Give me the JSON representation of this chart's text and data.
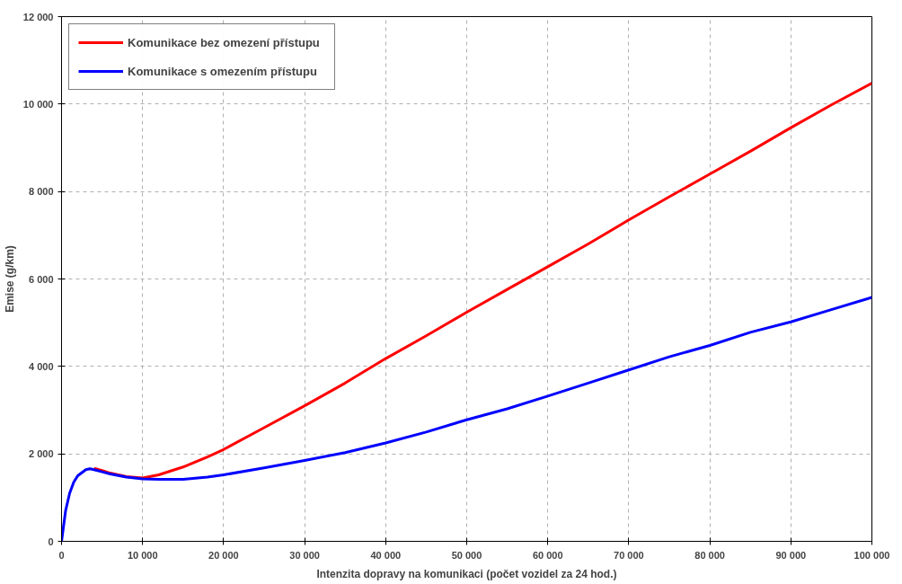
{
  "chart_data": {
    "type": "line",
    "xlabel": "Intenzita dopravy na komunikaci (počet vozidel za 24 hod.)",
    "ylabel": "Emise (g/km)",
    "x": [
      0,
      500,
      1000,
      1500,
      2000,
      3000,
      3500,
      4000,
      5000,
      6000,
      8000,
      10000,
      12000,
      15000,
      18000,
      20000,
      25000,
      30000,
      35000,
      40000,
      45000,
      50000,
      55000,
      60000,
      65000,
      70000,
      75000,
      80000,
      85000,
      90000,
      95000,
      100000
    ],
    "series": [
      {
        "name": "Komunikace bez omezení přístupu",
        "color": "#ff0000",
        "values": [
          null,
          null,
          null,
          null,
          null,
          null,
          null,
          1670,
          1620,
          1560,
          1480,
          1450,
          1520,
          1700,
          1930,
          2100,
          2600,
          3100,
          3620,
          4180,
          4700,
          5240,
          5760,
          6280,
          6800,
          7350,
          7880,
          8400,
          8920,
          9460,
          9980,
          10480
        ]
      },
      {
        "name": "Komunikace s omezením přístupu",
        "color": "#0000ff",
        "values": [
          0,
          700,
          1100,
          1350,
          1500,
          1640,
          1660,
          1640,
          1590,
          1540,
          1470,
          1430,
          1420,
          1420,
          1470,
          1520,
          1680,
          1850,
          2030,
          2250,
          2500,
          2780,
          3030,
          3320,
          3620,
          3920,
          4220,
          4480,
          4780,
          5020,
          5300,
          5580
        ]
      }
    ],
    "xlim": [
      0,
      100000
    ],
    "xticks": [
      {
        "value": 0,
        "label": "0"
      },
      {
        "value": 10000,
        "label": "10 000"
      },
      {
        "value": 20000,
        "label": "20 000"
      },
      {
        "value": 30000,
        "label": "30 000"
      },
      {
        "value": 40000,
        "label": "40 000"
      },
      {
        "value": 50000,
        "label": "50 000"
      },
      {
        "value": 60000,
        "label": "60 000"
      },
      {
        "value": 70000,
        "label": "70 000"
      },
      {
        "value": 80000,
        "label": "80 000"
      },
      {
        "value": 90000,
        "label": "90 000"
      },
      {
        "value": 100000,
        "label": "100 000"
      }
    ],
    "ylim": [
      0,
      12000
    ],
    "yticks": [
      0,
      {
        "value": 2000,
        "label": "2 000"
      },
      {
        "value": 4000,
        "label": "4 000"
      },
      {
        "value": 6000,
        "label": "6 000"
      },
      {
        "value": 8000,
        "label": "8 000"
      },
      {
        "value": 10000,
        "label": "10 000"
      },
      {
        "value": 12000,
        "label": "12 000"
      }
    ],
    "grid": true,
    "legend": "top left",
    "line_style": "solid",
    "marker": "none"
  }
}
